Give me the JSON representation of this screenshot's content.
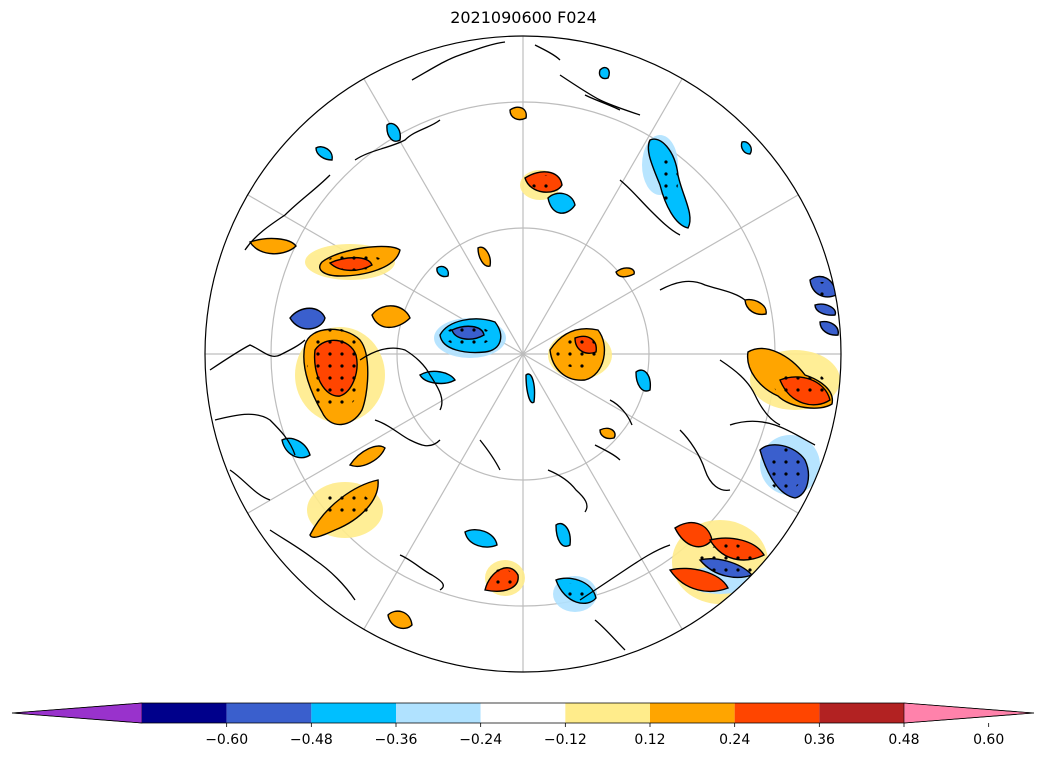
{
  "title": "2021090600 F024",
  "colorbar": {
    "colors": [
      "#9932cc",
      "#00008b",
      "#3a5fcd",
      "#00bfff",
      "#b0e2ff",
      "#ffffff",
      "#ffec8b",
      "#ffa500",
      "#ff4500",
      "#b22222",
      "#ff82ab"
    ],
    "levels": [
      "−0.60",
      "−0.48",
      "−0.36",
      "−0.24",
      "−0.12",
      "0.12",
      "0.24",
      "0.36",
      "0.48",
      "0.60"
    ],
    "extend": "both"
  },
  "projection": "north-polar-stereographic",
  "graticule": {
    "latitude_circles": true,
    "meridians": true
  }
}
